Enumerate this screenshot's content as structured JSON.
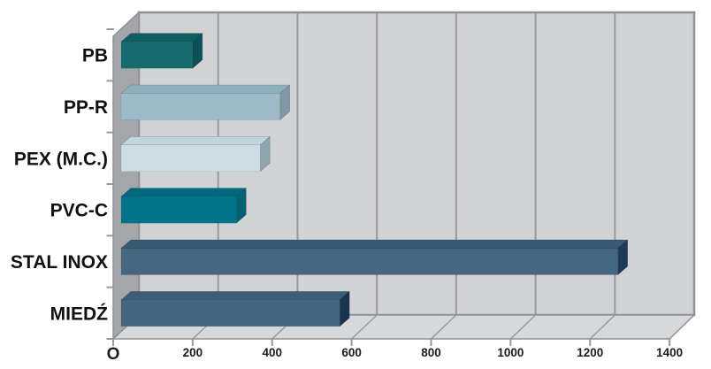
{
  "chart_data": {
    "type": "bar",
    "orientation": "horizontal",
    "style": "3d-perspective",
    "title": "",
    "xlabel": "",
    "ylabel": "",
    "legend": false,
    "grid": true,
    "categories": [
      "PB",
      "PP-R",
      "PEX (M.C.)",
      "PVC-C",
      "STAL INOX",
      "MIEDŹ"
    ],
    "values": [
      180,
      400,
      350,
      290,
      1250,
      550
    ],
    "xlim": [
      0,
      1400
    ],
    "x_ticks": [
      {
        "value": 0,
        "label": "O"
      },
      {
        "value": 200,
        "label": "200"
      },
      {
        "value": 400,
        "label": "400"
      },
      {
        "value": 600,
        "label": "600"
      },
      {
        "value": 800,
        "label": "800"
      },
      {
        "value": 1000,
        "label": "1000"
      },
      {
        "value": 1200,
        "label": "1200"
      },
      {
        "value": 1400,
        "label": "1400"
      }
    ],
    "bar_face_colors": [
      "#156b6e",
      "#9cbac7",
      "#cddde4",
      "#00758a",
      "#45677f",
      "#44677f"
    ],
    "bar_top_colors": [
      "#0d5f64",
      "#8fb0bf",
      "#c0d5de",
      "#00697e",
      "#3a5a73",
      "#3a5e77"
    ],
    "bar_end_colors": [
      "#0b5156",
      "#7f99a2",
      "#8fa5ae",
      "#02616f",
      "#1d3b58",
      "#18344f"
    ],
    "frame_colors": {
      "background": "#ffffff",
      "back_wall": "#d2d3d5",
      "side_wall": "#a4a6a9",
      "floor": "#d7d8d9",
      "grid_line": "#97999b",
      "border": "#8f9194",
      "tick_text": "#1c1c1c",
      "category_text": "#111111"
    }
  }
}
